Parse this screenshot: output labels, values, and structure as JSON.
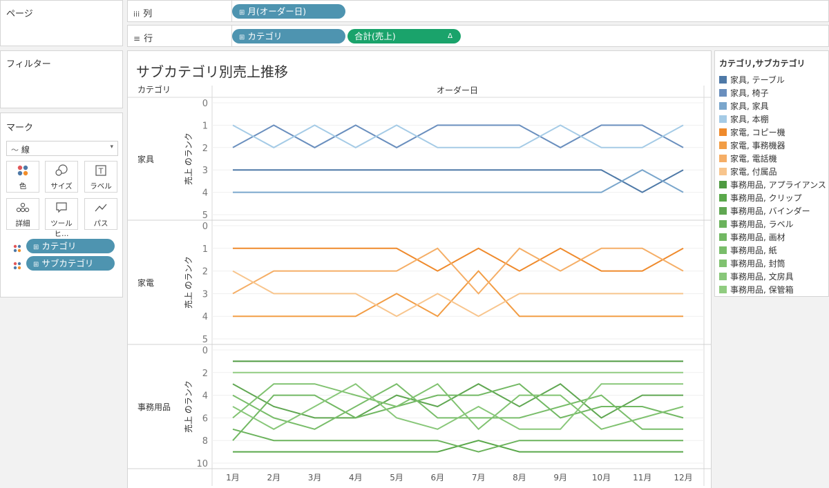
{
  "left_panel": {
    "pages_label": "ページ",
    "filters_label": "フィルター",
    "marks_label": "マーク",
    "mark_type": "線",
    "mark_type_icon": "line-icon",
    "mark_buttons": [
      {
        "label": "色",
        "icon": "color-icon"
      },
      {
        "label": "サイズ",
        "icon": "size-icon"
      },
      {
        "label": "ラベル",
        "icon": "label-icon"
      },
      {
        "label": "詳細",
        "icon": "detail-icon"
      },
      {
        "label": "ツールヒ…",
        "icon": "tooltip-icon"
      },
      {
        "label": "パス",
        "icon": "path-icon"
      }
    ],
    "mark_pills": [
      {
        "label": "カテゴリ"
      },
      {
        "label": "サブカテゴリ"
      }
    ]
  },
  "shelves": {
    "columns_label": "列",
    "columns_icon": "iii",
    "rows_label": "行",
    "rows_icon": "≡",
    "column_pill": "月(オーダー日)",
    "row_pill_1": "カテゴリ",
    "row_pill_2": "合計(売上)",
    "row_pill_2_delta": "Δ"
  },
  "view": {
    "title": "サブカテゴリ別売上推移",
    "category_header": "カテゴリ",
    "date_header": "オーダー日"
  },
  "legend": {
    "title": "カテゴリ,サブカテゴリ",
    "items": [
      {
        "label": "家具, テーブル",
        "color": "#4e79a7"
      },
      {
        "label": "家具, 椅子",
        "color": "#6a8fbe"
      },
      {
        "label": "家具, 家具",
        "color": "#7aa6cc"
      },
      {
        "label": "家具, 本棚",
        "color": "#a5cbe6"
      },
      {
        "label": "家電, コピー機",
        "color": "#ef8a2c"
      },
      {
        "label": "家電, 事務機器",
        "color": "#f29d45"
      },
      {
        "label": "家電, 電話機",
        "color": "#f5ae66"
      },
      {
        "label": "家電, 付属品",
        "color": "#f8c58d"
      },
      {
        "label": "事務用品, アプライアンス",
        "color": "#4f9a41"
      },
      {
        "label": "事務用品, クリップ",
        "color": "#5aa84b"
      },
      {
        "label": "事務用品, バインダー",
        "color": "#60a752"
      },
      {
        "label": "事務用品, ラベル",
        "color": "#6bb35c"
      },
      {
        "label": "事務用品, 画材",
        "color": "#72b863"
      },
      {
        "label": "事務用品, 紙",
        "color": "#79bd6a"
      },
      {
        "label": "事務用品, 封筒",
        "color": "#80c270"
      },
      {
        "label": "事務用品, 文房具",
        "color": "#88c779"
      },
      {
        "label": "事務用品, 保管箱",
        "color": "#90cc80"
      }
    ]
  },
  "chart_data": {
    "type": "line",
    "x": [
      "1月",
      "2月",
      "3月",
      "4月",
      "5月",
      "6月",
      "7月",
      "8月",
      "9月",
      "10月",
      "11月",
      "12月"
    ],
    "xlabel": "オーダー日",
    "panes": [
      {
        "name": "家具",
        "ylabel": "売上 のランク",
        "ylim": [
          0,
          5
        ],
        "yticks": [
          0,
          1,
          2,
          3,
          4,
          5
        ],
        "series": [
          {
            "name": "家具, テーブル",
            "color": "#4e79a7",
            "values": [
              3,
              3,
              3,
              3,
              3,
              3,
              3,
              3,
              3,
              3,
              4,
              3
            ]
          },
          {
            "name": "家具, 椅子",
            "color": "#6a8fbe",
            "values": [
              2,
              1,
              2,
              1,
              2,
              1,
              1,
              1,
              2,
              1,
              1,
              2
            ]
          },
          {
            "name": "家具, 家具",
            "color": "#7aa6cc",
            "values": [
              4,
              4,
              4,
              4,
              4,
              4,
              4,
              4,
              4,
              4,
              3,
              4
            ]
          },
          {
            "name": "家具, 本棚",
            "color": "#a5cbe6",
            "values": [
              1,
              2,
              1,
              2,
              1,
              2,
              2,
              2,
              1,
              2,
              2,
              1
            ]
          }
        ]
      },
      {
        "name": "家電",
        "ylabel": "売上 のランク",
        "ylim": [
          0,
          5
        ],
        "yticks": [
          0,
          1,
          2,
          3,
          4,
          5
        ],
        "series": [
          {
            "name": "家電, コピー機",
            "color": "#ef8a2c",
            "values": [
              1,
              1,
              1,
              1,
              1,
              2,
              1,
              2,
              1,
              2,
              2,
              1
            ]
          },
          {
            "name": "家電, 事務機器",
            "color": "#f29d45",
            "values": [
              4,
              4,
              4,
              4,
              3,
              4,
              2,
              4,
              4,
              4,
              4,
              4
            ]
          },
          {
            "name": "家電, 電話機",
            "color": "#f5ae66",
            "values": [
              3,
              2,
              2,
              2,
              2,
              1,
              3,
              1,
              2,
              1,
              1,
              2
            ]
          },
          {
            "name": "家電, 付属品",
            "color": "#f8c58d",
            "values": [
              2,
              3,
              3,
              3,
              4,
              3,
              4,
              3,
              3,
              3,
              3,
              3
            ]
          }
        ]
      },
      {
        "name": "事務用品",
        "ylabel": "売上 のランク",
        "ylim": [
          0,
          10
        ],
        "yticks": [
          0,
          2,
          4,
          6,
          8,
          10
        ],
        "series": [
          {
            "name": "事務用品, アプライアンス",
            "color": "#4f9a41",
            "values": [
              1,
              1,
              1,
              1,
              1,
              1,
              1,
              1,
              1,
              1,
              1,
              1
            ]
          },
          {
            "name": "事務用品, クリップ",
            "color": "#5aa84b",
            "values": [
              9,
              9,
              9,
              9,
              9,
              9,
              8,
              9,
              9,
              9,
              9,
              9
            ]
          },
          {
            "name": "事務用品, バインダー",
            "color": "#60a752",
            "values": [
              3,
              5,
              6,
              6,
              4,
              5,
              3,
              5,
              3,
              6,
              4,
              4
            ]
          },
          {
            "name": "事務用品, ラベル",
            "color": "#6bb35c",
            "values": [
              7,
              8,
              8,
              8,
              8,
              8,
              9,
              8,
              8,
              8,
              8,
              8
            ]
          },
          {
            "name": "事務用品, 画材",
            "color": "#72b863",
            "values": [
              8,
              4,
              4,
              6,
              5,
              4,
              4,
              3,
              6,
              5,
              5,
              6
            ]
          },
          {
            "name": "事務用品, 紙",
            "color": "#79bd6a",
            "values": [
              4,
              6,
              7,
              5,
              3,
              6,
              6,
              6,
              5,
              4,
              7,
              7
            ]
          },
          {
            "name": "事務用品, 封筒",
            "color": "#80c270",
            "values": [
              6,
              3,
              3,
              4,
              5,
              3,
              7,
              4,
              4,
              7,
              6,
              5
            ]
          },
          {
            "name": "事務用品, 文房具",
            "color": "#88c779",
            "values": [
              5,
              7,
              5,
              3,
              6,
              7,
              5,
              7,
              7,
              3,
              3,
              3
            ]
          },
          {
            "name": "事務用品, 保管箱",
            "color": "#90cc80",
            "values": [
              2,
              2,
              2,
              2,
              2,
              2,
              2,
              2,
              2,
              2,
              2,
              2
            ]
          }
        ]
      }
    ]
  }
}
